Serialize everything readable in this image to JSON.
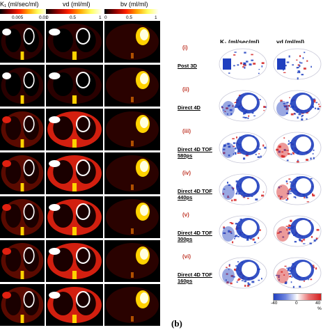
{
  "panel_a": {
    "headers": {
      "k1": "K₁ (ml/sec/ml)",
      "vd": "vd (ml/ml)",
      "bv": "bv (ml/ml)"
    },
    "k1_ticks": [
      "0.005",
      "0.01"
    ],
    "vd_ticks": [
      "0",
      "0.5",
      "1"
    ],
    "bv_ticks": [
      "0",
      "0.5",
      "1"
    ],
    "colors": {
      "hot_dark": "#1a0000",
      "hot_mid": "#d21f0f",
      "hot_bright": "#ffd200",
      "hot_white": "#ffffff"
    },
    "row_count": 7
  },
  "panel_b": {
    "headers": {
      "k1": "K₁ (ml/sec/ml)",
      "vd": "vd (ml/ml)"
    },
    "rows": [
      {
        "numeral": "(i)",
        "label": "Post 3D"
      },
      {
        "numeral": "(ii)",
        "label": "Direct 4D"
      },
      {
        "numeral": "(iii)",
        "label": "Direct 4D TOF 580ps"
      },
      {
        "numeral": "(iv)",
        "label": "Direct 4D TOF 440ps"
      },
      {
        "numeral": "(v)",
        "label": "Direct 4D TOF 300ps"
      },
      {
        "numeral": "(vi)",
        "label": "Direct 4D TOF 160ps"
      }
    ],
    "colorbar_ticks": [
      "-40",
      "0",
      "40"
    ],
    "colorbar_unit": "%",
    "colors": {
      "neg": "#1f3fbf",
      "zero": "#ffffff",
      "pos": "#d42020"
    },
    "panel_label": "(b)"
  }
}
